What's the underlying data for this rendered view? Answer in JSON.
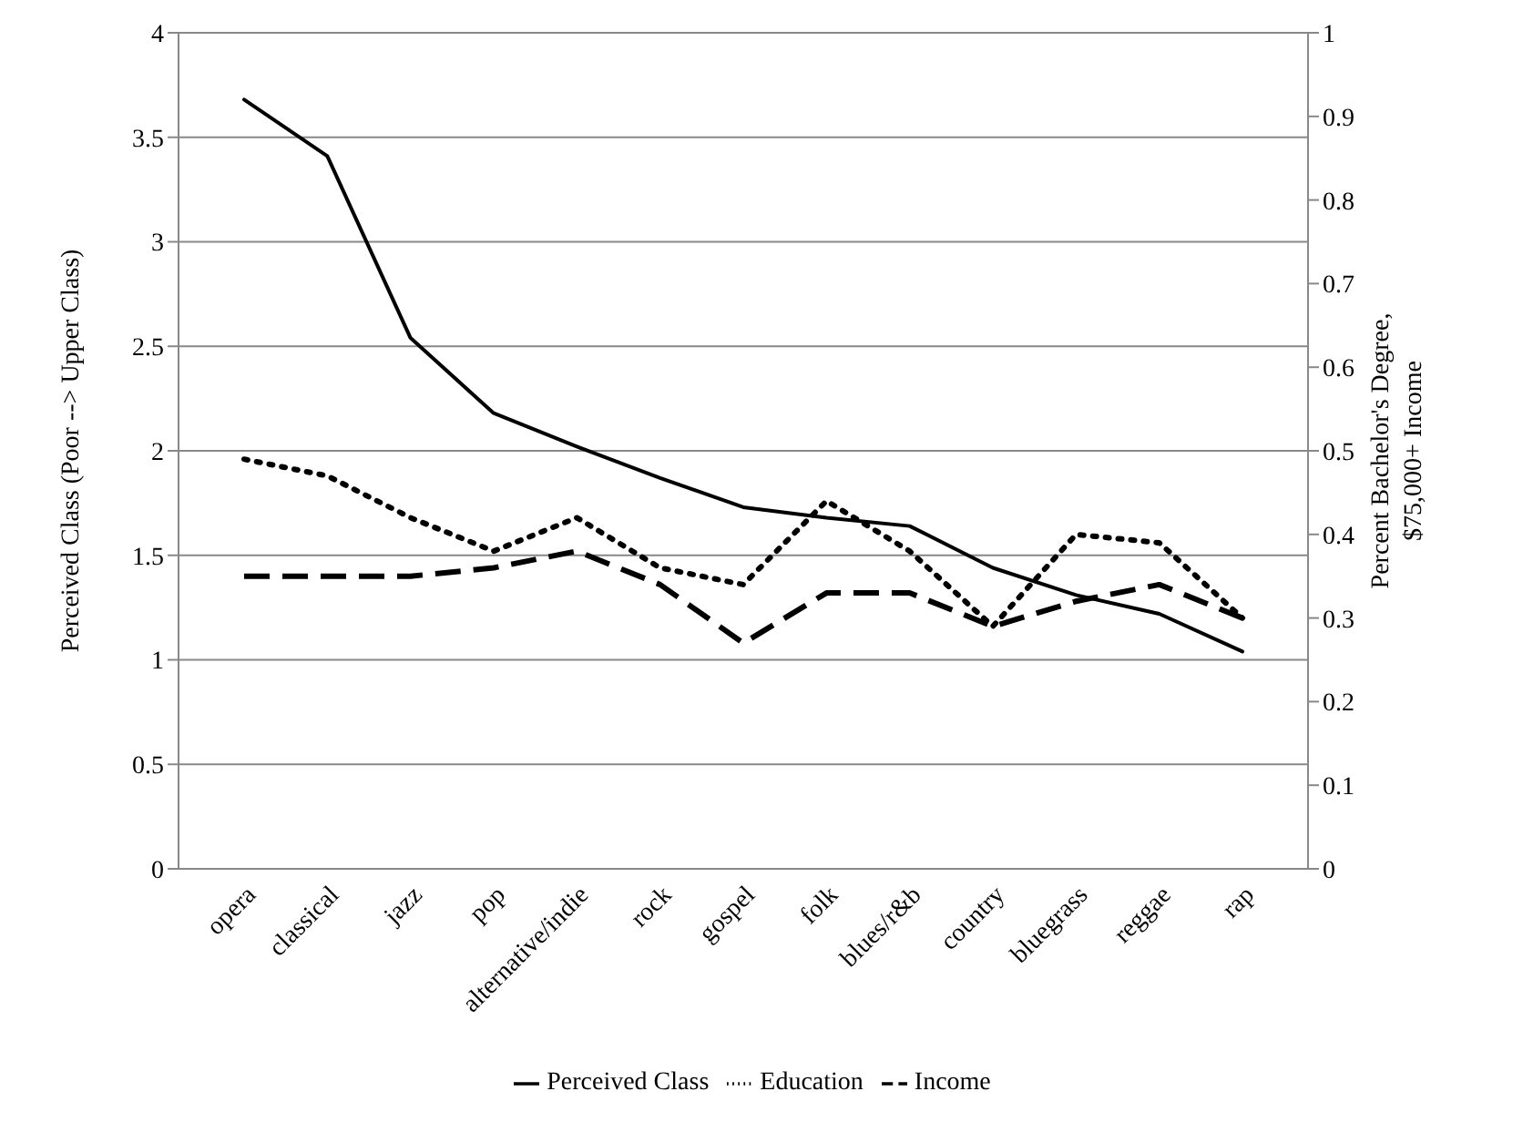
{
  "chart_data": {
    "type": "line",
    "categories": [
      "opera",
      "classical",
      "jazz",
      "pop",
      "alternative/indie",
      "rock",
      "gospel",
      "folk",
      "blues/r&b",
      "country",
      "bluegrass",
      "reggae",
      "rap"
    ],
    "ylabel": "Perceived Class (Poor --> Upper Class)",
    "y2label": "Percent Bachelor's Degree, $75,000+ Income",
    "ylim": [
      0,
      4
    ],
    "yticks": [
      0,
      0.5,
      1,
      1.5,
      2,
      2.5,
      3,
      3.5,
      4
    ],
    "y2lim": [
      0,
      1
    ],
    "y2ticks": [
      0,
      0.1,
      0.2,
      0.3,
      0.4,
      0.5,
      0.6,
      0.7,
      0.8,
      0.9,
      1
    ],
    "grid": "y",
    "legend": "bottom",
    "marker": "none",
    "series": [
      {
        "name": "Perceived Class",
        "color": "#000000",
        "line_style": "solid",
        "values": [
          3.68,
          3.41,
          2.54,
          2.18,
          2.02,
          1.87,
          1.73,
          1.68,
          1.64,
          1.44,
          1.31,
          1.22,
          1.04
        ]
      },
      {
        "name": "Education",
        "color": "#000000",
        "line_style": "dotted",
        "axis": "y2",
        "values": [
          0.49,
          0.47,
          0.42,
          0.38,
          0.42,
          0.36,
          0.34,
          0.44,
          0.38,
          0.29,
          0.4,
          0.39,
          0.3
        ]
      },
      {
        "name": "Income",
        "color": "#000000",
        "line_style": "dashed",
        "axis": "y2",
        "values": [
          0.35,
          0.35,
          0.35,
          0.36,
          0.38,
          0.34,
          0.27,
          0.33,
          0.33,
          0.29,
          0.32,
          0.34,
          0.3
        ]
      }
    ]
  }
}
